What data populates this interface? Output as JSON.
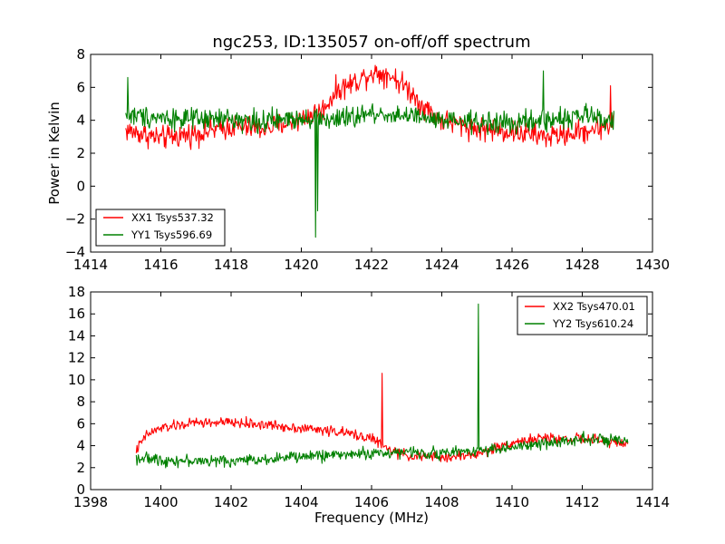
{
  "title": "ngc253, ID:135057 on-off/off spectrum",
  "colors": {
    "xx": "#ff0000",
    "yy": "#008000",
    "axes": "#000000",
    "background": "#ffffff"
  },
  "chart_data": [
    {
      "type": "line",
      "ylabel": "Power in Kelvin",
      "xlim": [
        1414,
        1430
      ],
      "ylim": [
        -4,
        8
      ],
      "xticks": [
        1414,
        1416,
        1418,
        1420,
        1422,
        1424,
        1426,
        1428,
        1430
      ],
      "yticks": [
        -4,
        -2,
        0,
        2,
        4,
        6,
        8
      ],
      "x_range": [
        1415.0,
        1428.9
      ],
      "grid": false,
      "legend_position": "lower-left",
      "series": [
        {
          "name": "XX1 Tsys537.32",
          "color": "#ff0000",
          "profile": [
            [
              1415.0,
              3.4
            ],
            [
              1416.0,
              2.9
            ],
            [
              1417.0,
              3.2
            ],
            [
              1418.0,
              3.6
            ],
            [
              1419.0,
              3.5
            ],
            [
              1420.0,
              4.1
            ],
            [
              1420.6,
              4.6
            ],
            [
              1421.0,
              5.8
            ],
            [
              1421.5,
              6.3
            ],
            [
              1422.0,
              6.9
            ],
            [
              1422.5,
              6.8
            ],
            [
              1423.0,
              6.0
            ],
            [
              1423.5,
              4.8
            ],
            [
              1424.0,
              4.0
            ],
            [
              1425.0,
              3.5
            ],
            [
              1426.0,
              3.3
            ],
            [
              1427.0,
              3.0
            ],
            [
              1428.0,
              3.3
            ],
            [
              1428.9,
              3.8
            ]
          ],
          "noise": 0.75,
          "spikes": [
            [
              1428.8,
              6.1
            ]
          ]
        },
        {
          "name": "YY1 Tsys596.69",
          "color": "#008000",
          "profile": [
            [
              1415.0,
              4.3
            ],
            [
              1416.0,
              4.2
            ],
            [
              1417.0,
              4.0
            ],
            [
              1418.0,
              4.1
            ],
            [
              1419.0,
              3.9
            ],
            [
              1420.0,
              4.2
            ],
            [
              1421.0,
              4.0
            ],
            [
              1422.0,
              4.4
            ],
            [
              1423.0,
              4.3
            ],
            [
              1424.0,
              3.9
            ],
            [
              1425.0,
              3.9
            ],
            [
              1426.0,
              3.8
            ],
            [
              1427.0,
              4.0
            ],
            [
              1428.0,
              4.3
            ],
            [
              1428.9,
              4.0
            ]
          ],
          "noise": 0.7,
          "spikes": [
            [
              1420.4,
              -3.1
            ],
            [
              1420.46,
              -1.5
            ],
            [
              1426.9,
              7.0
            ],
            [
              1415.05,
              6.6
            ]
          ]
        }
      ]
    },
    {
      "type": "line",
      "xlabel": "Frequency (MHz)",
      "xlim": [
        1398,
        1414
      ],
      "ylim": [
        0,
        18
      ],
      "xticks": [
        1398,
        1400,
        1402,
        1404,
        1406,
        1408,
        1410,
        1412,
        1414
      ],
      "yticks": [
        0,
        2,
        4,
        6,
        8,
        10,
        12,
        14,
        16,
        18
      ],
      "x_range": [
        1399.3,
        1413.3
      ],
      "grid": false,
      "legend_position": "top-right",
      "series": [
        {
          "name": "XX2 Tsys470.01",
          "color": "#ff0000",
          "profile": [
            [
              1399.3,
              3.6
            ],
            [
              1399.6,
              5.0
            ],
            [
              1400.0,
              5.6
            ],
            [
              1401.0,
              6.1
            ],
            [
              1402.0,
              6.1
            ],
            [
              1403.0,
              5.9
            ],
            [
              1404.0,
              5.6
            ],
            [
              1405.0,
              5.3
            ],
            [
              1406.0,
              4.7
            ],
            [
              1406.5,
              3.6
            ],
            [
              1407.0,
              3.1
            ],
            [
              1408.0,
              2.9
            ],
            [
              1409.0,
              3.2
            ],
            [
              1410.0,
              4.3
            ],
            [
              1411.0,
              4.7
            ],
            [
              1412.0,
              4.6
            ],
            [
              1413.3,
              4.2
            ]
          ],
          "noise": 0.5,
          "spikes": [
            [
              1406.3,
              10.6
            ]
          ]
        },
        {
          "name": "YY2 Tsys610.24",
          "color": "#008000",
          "profile": [
            [
              1399.3,
              2.9
            ],
            [
              1400.0,
              2.7
            ],
            [
              1401.0,
              2.6
            ],
            [
              1402.0,
              2.6
            ],
            [
              1403.0,
              2.8
            ],
            [
              1404.0,
              3.0
            ],
            [
              1405.0,
              3.2
            ],
            [
              1406.0,
              3.3
            ],
            [
              1407.0,
              3.4
            ],
            [
              1408.0,
              3.3
            ],
            [
              1409.0,
              3.6
            ],
            [
              1410.0,
              3.8
            ],
            [
              1411.0,
              4.2
            ],
            [
              1412.0,
              4.7
            ],
            [
              1413.3,
              4.3
            ]
          ],
          "noise": 0.55,
          "spikes": [
            [
              1409.05,
              16.9
            ]
          ]
        }
      ]
    }
  ]
}
